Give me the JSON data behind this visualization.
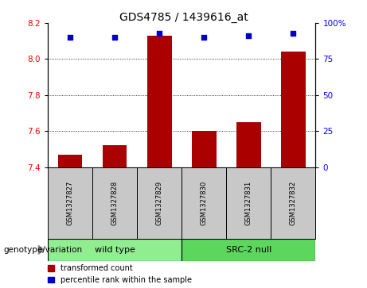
{
  "title": "GDS4785 / 1439616_at",
  "samples": [
    "GSM1327827",
    "GSM1327828",
    "GSM1327829",
    "GSM1327830",
    "GSM1327831",
    "GSM1327832"
  ],
  "red_values": [
    7.47,
    7.52,
    8.13,
    7.6,
    7.65,
    8.04
  ],
  "blue_values": [
    90,
    90,
    93,
    90,
    91,
    93
  ],
  "ylim_left": [
    7.4,
    8.2
  ],
  "ylim_right": [
    0,
    100
  ],
  "yticks_left": [
    7.4,
    7.6,
    7.8,
    8.0,
    8.2
  ],
  "yticks_right": [
    0,
    25,
    50,
    75,
    100
  ],
  "ytick_labels_right": [
    "0",
    "25",
    "50",
    "75",
    "100%"
  ],
  "groups": [
    {
      "label": "wild type",
      "span": [
        0,
        3
      ],
      "color": "#90EE90"
    },
    {
      "label": "SRC-2 null",
      "span": [
        3,
        6
      ],
      "color": "#5CD65C"
    }
  ],
  "group_label": "genotype/variation",
  "legend_red": "transformed count",
  "legend_blue": "percentile rank within the sample",
  "bar_color": "#AA0000",
  "dot_color": "#0000CC",
  "bg_color": "#C8C8C8",
  "plot_bg": "#FFFFFF",
  "base_value": 7.4,
  "bar_width": 0.55,
  "grid_ticks": [
    7.6,
    7.8,
    8.0
  ]
}
